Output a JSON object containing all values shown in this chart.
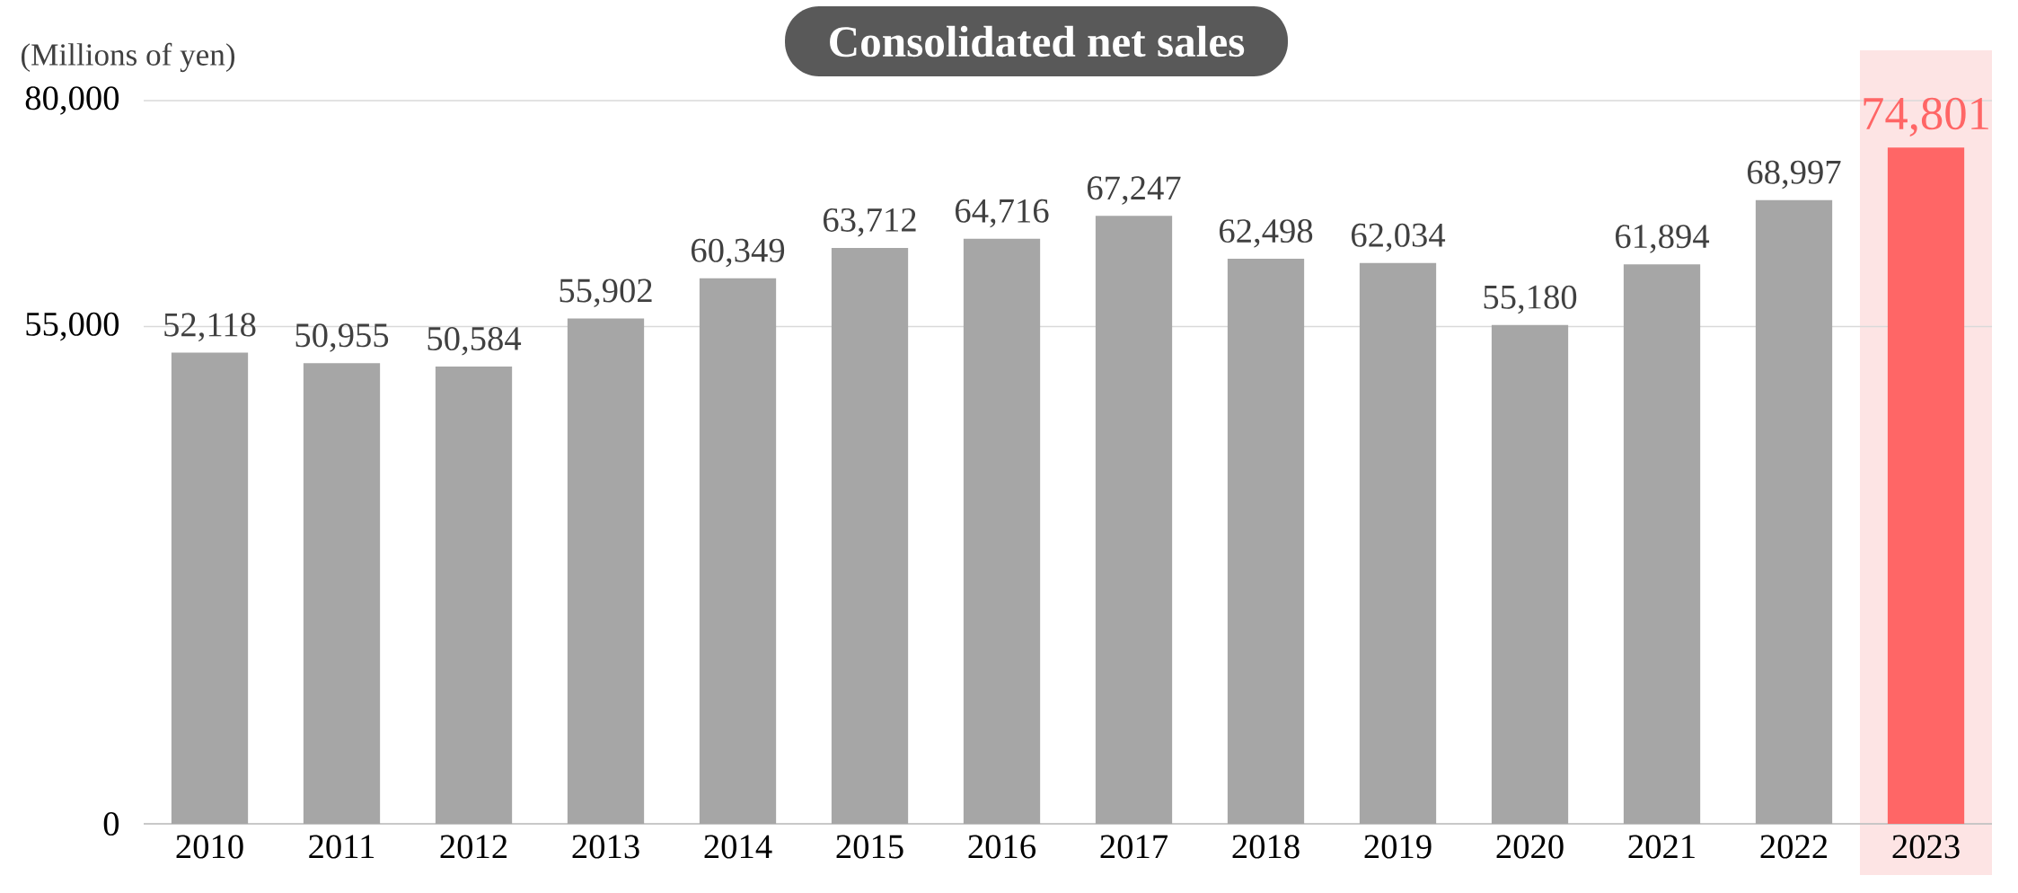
{
  "chart_data": {
    "type": "bar",
    "title": "Consolidated net sales",
    "ylabel": "(Millions of yen)",
    "categories": [
      "2010",
      "2011",
      "2012",
      "2013",
      "2014",
      "2015",
      "2016",
      "2017",
      "2018",
      "2019",
      "2020",
      "2021",
      "2022",
      "2023"
    ],
    "values": [
      52118,
      50955,
      50584,
      55902,
      60349,
      63712,
      64716,
      67247,
      62498,
      62034,
      55180,
      61894,
      68997,
      74801
    ],
    "value_labels": [
      "52,118",
      "50,955",
      "50,584",
      "55,902",
      "60,349",
      "63,712",
      "64,716",
      "67,247",
      "62,498",
      "62,034",
      "55,180",
      "61,894",
      "68,997",
      "74,801"
    ],
    "colors": [
      "#a6a6a6",
      "#a6a6a6",
      "#a6a6a6",
      "#a6a6a6",
      "#a6a6a6",
      "#a6a6a6",
      "#a6a6a6",
      "#a6a6a6",
      "#a6a6a6",
      "#a6a6a6",
      "#a6a6a6",
      "#a6a6a6",
      "#a6a6a6",
      "#ff6666"
    ],
    "ylim": [
      0,
      80000
    ],
    "yticks": [
      0,
      {
        "value": 55000,
        "label": "55,000"
      },
      {
        "value": 80000,
        "label": "80,000"
      }
    ],
    "bands": [
      {
        "axis": "x",
        "from": "2023",
        "to": "2023",
        "color": "#fde4e4"
      }
    ],
    "grid": "y"
  }
}
